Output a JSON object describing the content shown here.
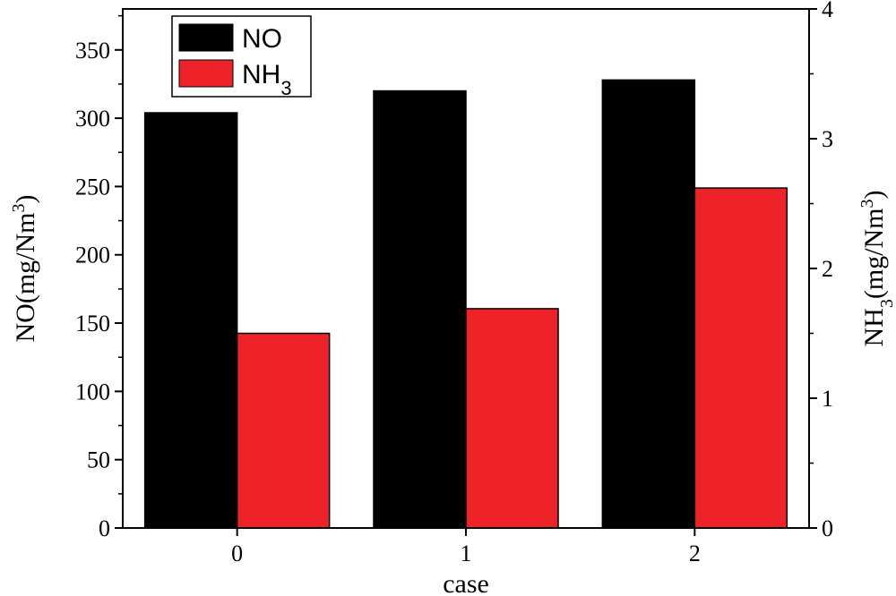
{
  "chart_data": {
    "type": "bar",
    "categories": [
      "0",
      "1",
      "2"
    ],
    "xlabel": "case",
    "y_left": {
      "label": "NO(mg/Nm",
      "label_sup": "3",
      "label_close": ")",
      "ylim": [
        0,
        380
      ],
      "ticks": [
        0,
        50,
        100,
        150,
        200,
        250,
        300,
        350
      ]
    },
    "y_right": {
      "label_prefix": "NH",
      "label_sub": "3",
      "label_mid": "(mg/Nm",
      "label_sup": "3",
      "label_close": ")",
      "ylim": [
        0,
        4
      ],
      "ticks": [
        0,
        1,
        2,
        3,
        4
      ]
    },
    "series": [
      {
        "name": "NO",
        "name_sub": "",
        "axis": "left",
        "color": "#000000",
        "values": [
          304,
          320,
          328
        ]
      },
      {
        "name": "NH",
        "name_sub": "3",
        "axis": "right",
        "color": "#ee2229",
        "values": [
          1.5,
          1.69,
          2.62
        ]
      }
    ],
    "legend": {
      "position": "top-left"
    },
    "grid": false
  }
}
